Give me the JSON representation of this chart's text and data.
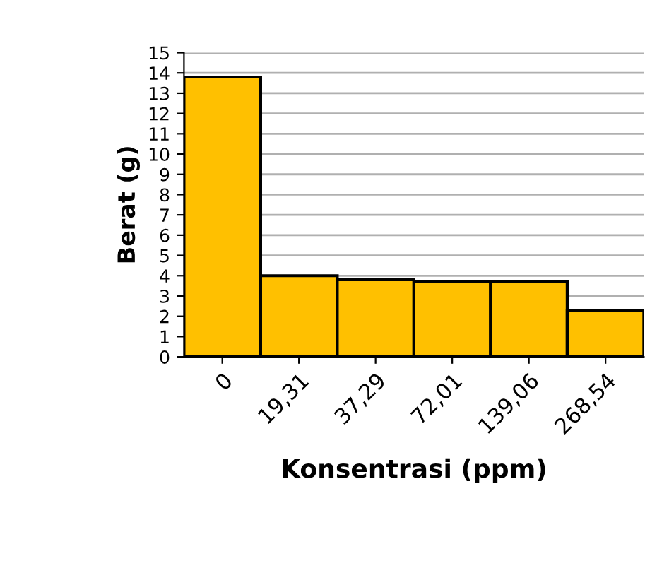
{
  "chart_data": {
    "type": "bar",
    "xlabel": "Konsentrasi (ppm)",
    "ylabel": "Berat (g)",
    "categories": [
      "0",
      "19,31",
      "37,29",
      "72,01",
      "139,06",
      "268,54"
    ],
    "values": [
      13.8,
      4.0,
      3.8,
      3.7,
      3.7,
      2.3
    ],
    "color": "#ffc000",
    "ylim": [
      0,
      15
    ],
    "yticks": [
      0,
      1,
      2,
      3,
      4,
      5,
      6,
      7,
      8,
      9,
      10,
      11,
      12,
      13,
      14,
      15
    ],
    "grid": "y"
  }
}
